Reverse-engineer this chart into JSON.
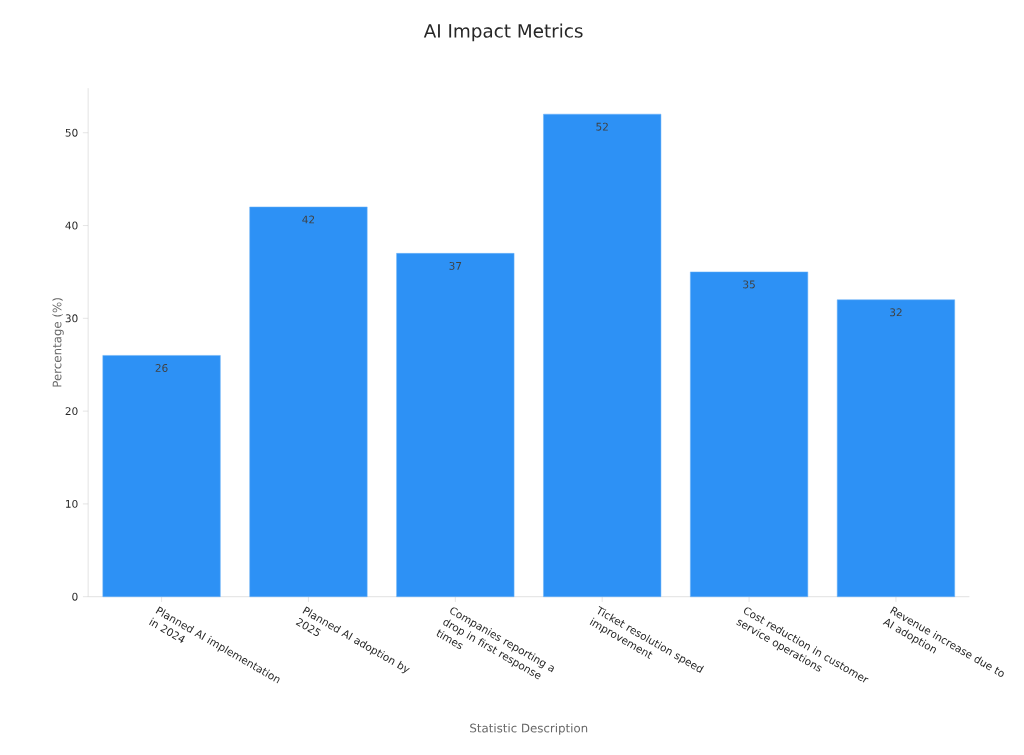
{
  "chart_data": {
    "type": "bar",
    "title": "AI Impact Metrics",
    "xlabel": "Statistic Description",
    "ylabel": "Percentage (%)",
    "categories": [
      "Planned AI implementation in 2024",
      "Planned AI adoption by 2025",
      "Companies reporting a drop in first response times",
      "Ticket resolution speed improvement",
      "Cost reduction in customer service operations",
      "Revenue increase due to AI adoption"
    ],
    "values": [
      26,
      42,
      37,
      52,
      35,
      32
    ],
    "color": "#2d91f5",
    "ylim": [
      0,
      54.8
    ],
    "yticks": [
      0,
      10,
      20,
      30,
      40,
      50
    ],
    "grid": false,
    "data_labels": true
  }
}
